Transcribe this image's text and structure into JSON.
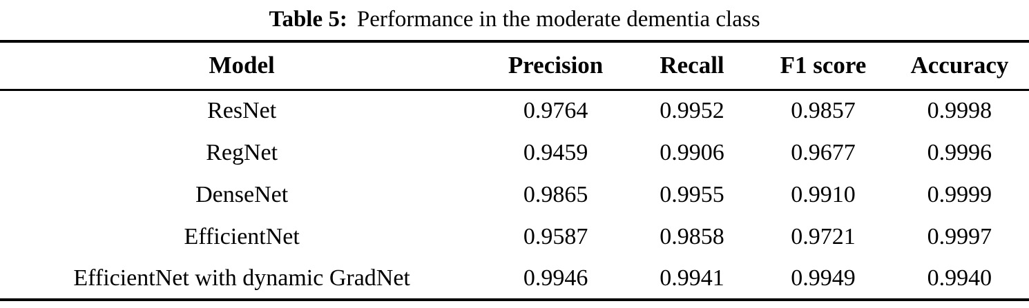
{
  "caption": {
    "label": "Table 5:",
    "text": "Performance in the moderate dementia class"
  },
  "table": {
    "headers": [
      "Model",
      "Precision",
      "Recall",
      "F1 score",
      "Accuracy"
    ],
    "rows": [
      [
        "ResNet",
        "0.9764",
        "0.9952",
        "0.9857",
        "0.9998"
      ],
      [
        "RegNet",
        "0.9459",
        "0.9906",
        "0.9677",
        "0.9996"
      ],
      [
        "DenseNet",
        "0.9865",
        "0.9955",
        "0.9910",
        "0.9999"
      ],
      [
        "EfficientNet",
        "0.9587",
        "0.9858",
        "0.9721",
        "0.9997"
      ],
      [
        "EfficientNet with dynamic GradNet",
        "0.9946",
        "0.9941",
        "0.9949",
        "0.9940"
      ]
    ]
  },
  "colors": {
    "text": "#000000",
    "background": "#ffffff",
    "rule": "#000000"
  },
  "chart_data": {
    "type": "table",
    "title": "Table 5: Performance in the moderate dementia class",
    "columns": [
      "Model",
      "Precision",
      "Recall",
      "F1 score",
      "Accuracy"
    ],
    "rows": [
      {
        "model": "ResNet",
        "precision": 0.9764,
        "recall": 0.9952,
        "f1_score": 0.9857,
        "accuracy": 0.9998
      },
      {
        "model": "RegNet",
        "precision": 0.9459,
        "recall": 0.9906,
        "f1_score": 0.9677,
        "accuracy": 0.9996
      },
      {
        "model": "DenseNet",
        "precision": 0.9865,
        "recall": 0.9955,
        "f1_score": 0.991,
        "accuracy": 0.9999
      },
      {
        "model": "EfficientNet",
        "precision": 0.9587,
        "recall": 0.9858,
        "f1_score": 0.9721,
        "accuracy": 0.9997
      },
      {
        "model": "EfficientNet with dynamic GradNet",
        "precision": 0.9946,
        "recall": 0.9941,
        "f1_score": 0.9949,
        "accuracy": 0.994
      }
    ]
  }
}
